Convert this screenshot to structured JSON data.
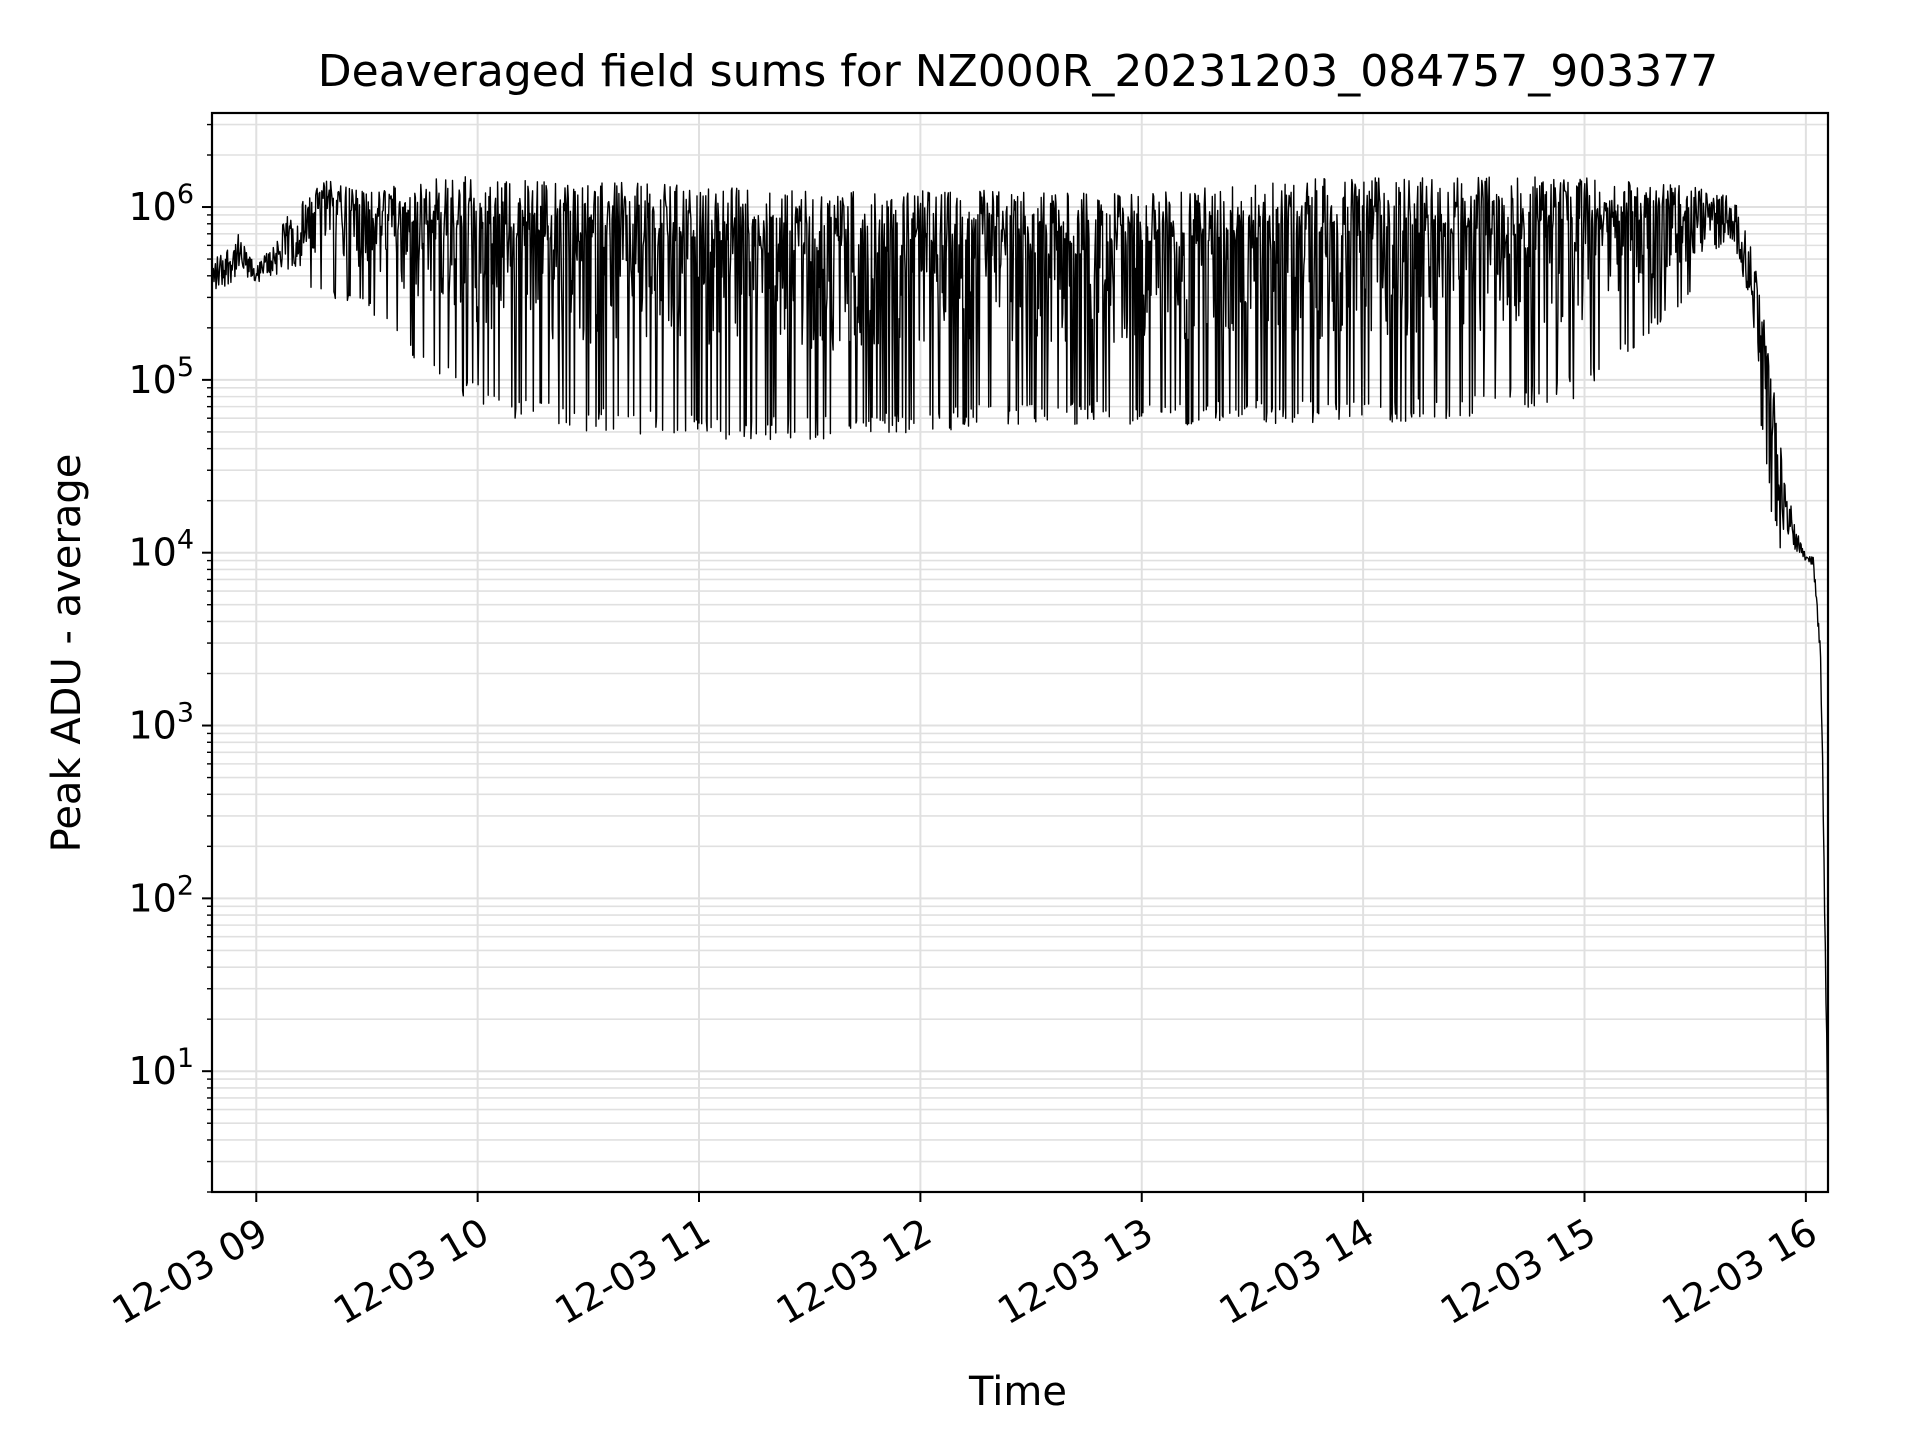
{
  "chart_data": {
    "type": "line",
    "title": "Deaveraged field sums for NZ000R_20231203_084757_903377",
    "xlabel": "Time",
    "ylabel": "Peak ADU - average",
    "yscale": "log",
    "xlim": [
      "2023-12-03 08:48",
      "2023-12-03 16:06"
    ],
    "ylim": [
      2,
      3500000
    ],
    "grid": true,
    "grid_color": "#e0e0e0",
    "line_color": "#000000",
    "x_ticks": [
      {
        "value": "2023-12-03 09:00",
        "label": "12-03 09"
      },
      {
        "value": "2023-12-03 10:00",
        "label": "12-03 10"
      },
      {
        "value": "2023-12-03 11:00",
        "label": "12-03 11"
      },
      {
        "value": "2023-12-03 12:00",
        "label": "12-03 12"
      },
      {
        "value": "2023-12-03 13:00",
        "label": "12-03 13"
      },
      {
        "value": "2023-12-03 14:00",
        "label": "12-03 14"
      },
      {
        "value": "2023-12-03 15:00",
        "label": "12-03 15"
      },
      {
        "value": "2023-12-03 16:00",
        "label": "12-03 16"
      }
    ],
    "y_ticks": [
      {
        "value": 10,
        "base": "10",
        "exp": "1"
      },
      {
        "value": 100,
        "base": "10",
        "exp": "2"
      },
      {
        "value": 1000,
        "base": "10",
        "exp": "3"
      },
      {
        "value": 10000,
        "base": "10",
        "exp": "4"
      },
      {
        "value": 100000,
        "base": "10",
        "exp": "5"
      },
      {
        "value": 1000000,
        "base": "10",
        "exp": "6"
      }
    ],
    "series": [
      {
        "x": [
          "2023-12-03 08:48",
          "2023-12-03 08:55",
          "2023-12-03 09:00",
          "2023-12-03 09:10",
          "2023-12-03 09:20",
          "2023-12-03 09:30",
          "2023-12-03 09:45",
          "2023-12-03 10:00",
          "2023-12-03 10:15",
          "2023-12-03 10:30",
          "2023-12-03 11:00",
          "2023-12-03 11:30",
          "2023-12-03 12:00",
          "2023-12-03 12:30",
          "2023-12-03 13:00",
          "2023-12-03 13:30",
          "2023-12-03 14:00",
          "2023-12-03 14:30",
          "2023-12-03 15:00",
          "2023-12-03 15:20",
          "2023-12-03 15:40",
          "2023-12-03 15:45",
          "2023-12-03 15:48",
          "2023-12-03 15:51",
          "2023-12-03 15:54",
          "2023-12-03 15:57",
          "2023-12-03 16:00",
          "2023-12-03 16:02",
          "2023-12-03 16:04",
          "2023-12-03 16:05",
          "2023-12-03 16:06"
        ],
        "upper": [
          500000,
          700000,
          450000,
          1000000,
          1500000,
          1200000,
          1500000,
          1500000,
          1450000,
          1400000,
          1350000,
          1250000,
          1250000,
          1250000,
          1200000,
          1400000,
          1500000,
          1500000,
          1500000,
          1400000,
          1200000,
          600000,
          300000,
          100000,
          30000,
          15000,
          10000,
          9500,
          3000,
          200,
          4
        ],
        "lower": [
          250000,
          300000,
          330000,
          300000,
          300000,
          250000,
          120000,
          70000,
          55000,
          50000,
          45000,
          45000,
          50000,
          55000,
          55000,
          55000,
          55000,
          60000,
          80000,
          200000,
          500000,
          200000,
          50000,
          15000,
          9000,
          9000,
          8500,
          8000,
          2000,
          80,
          3
        ]
      }
    ]
  }
}
